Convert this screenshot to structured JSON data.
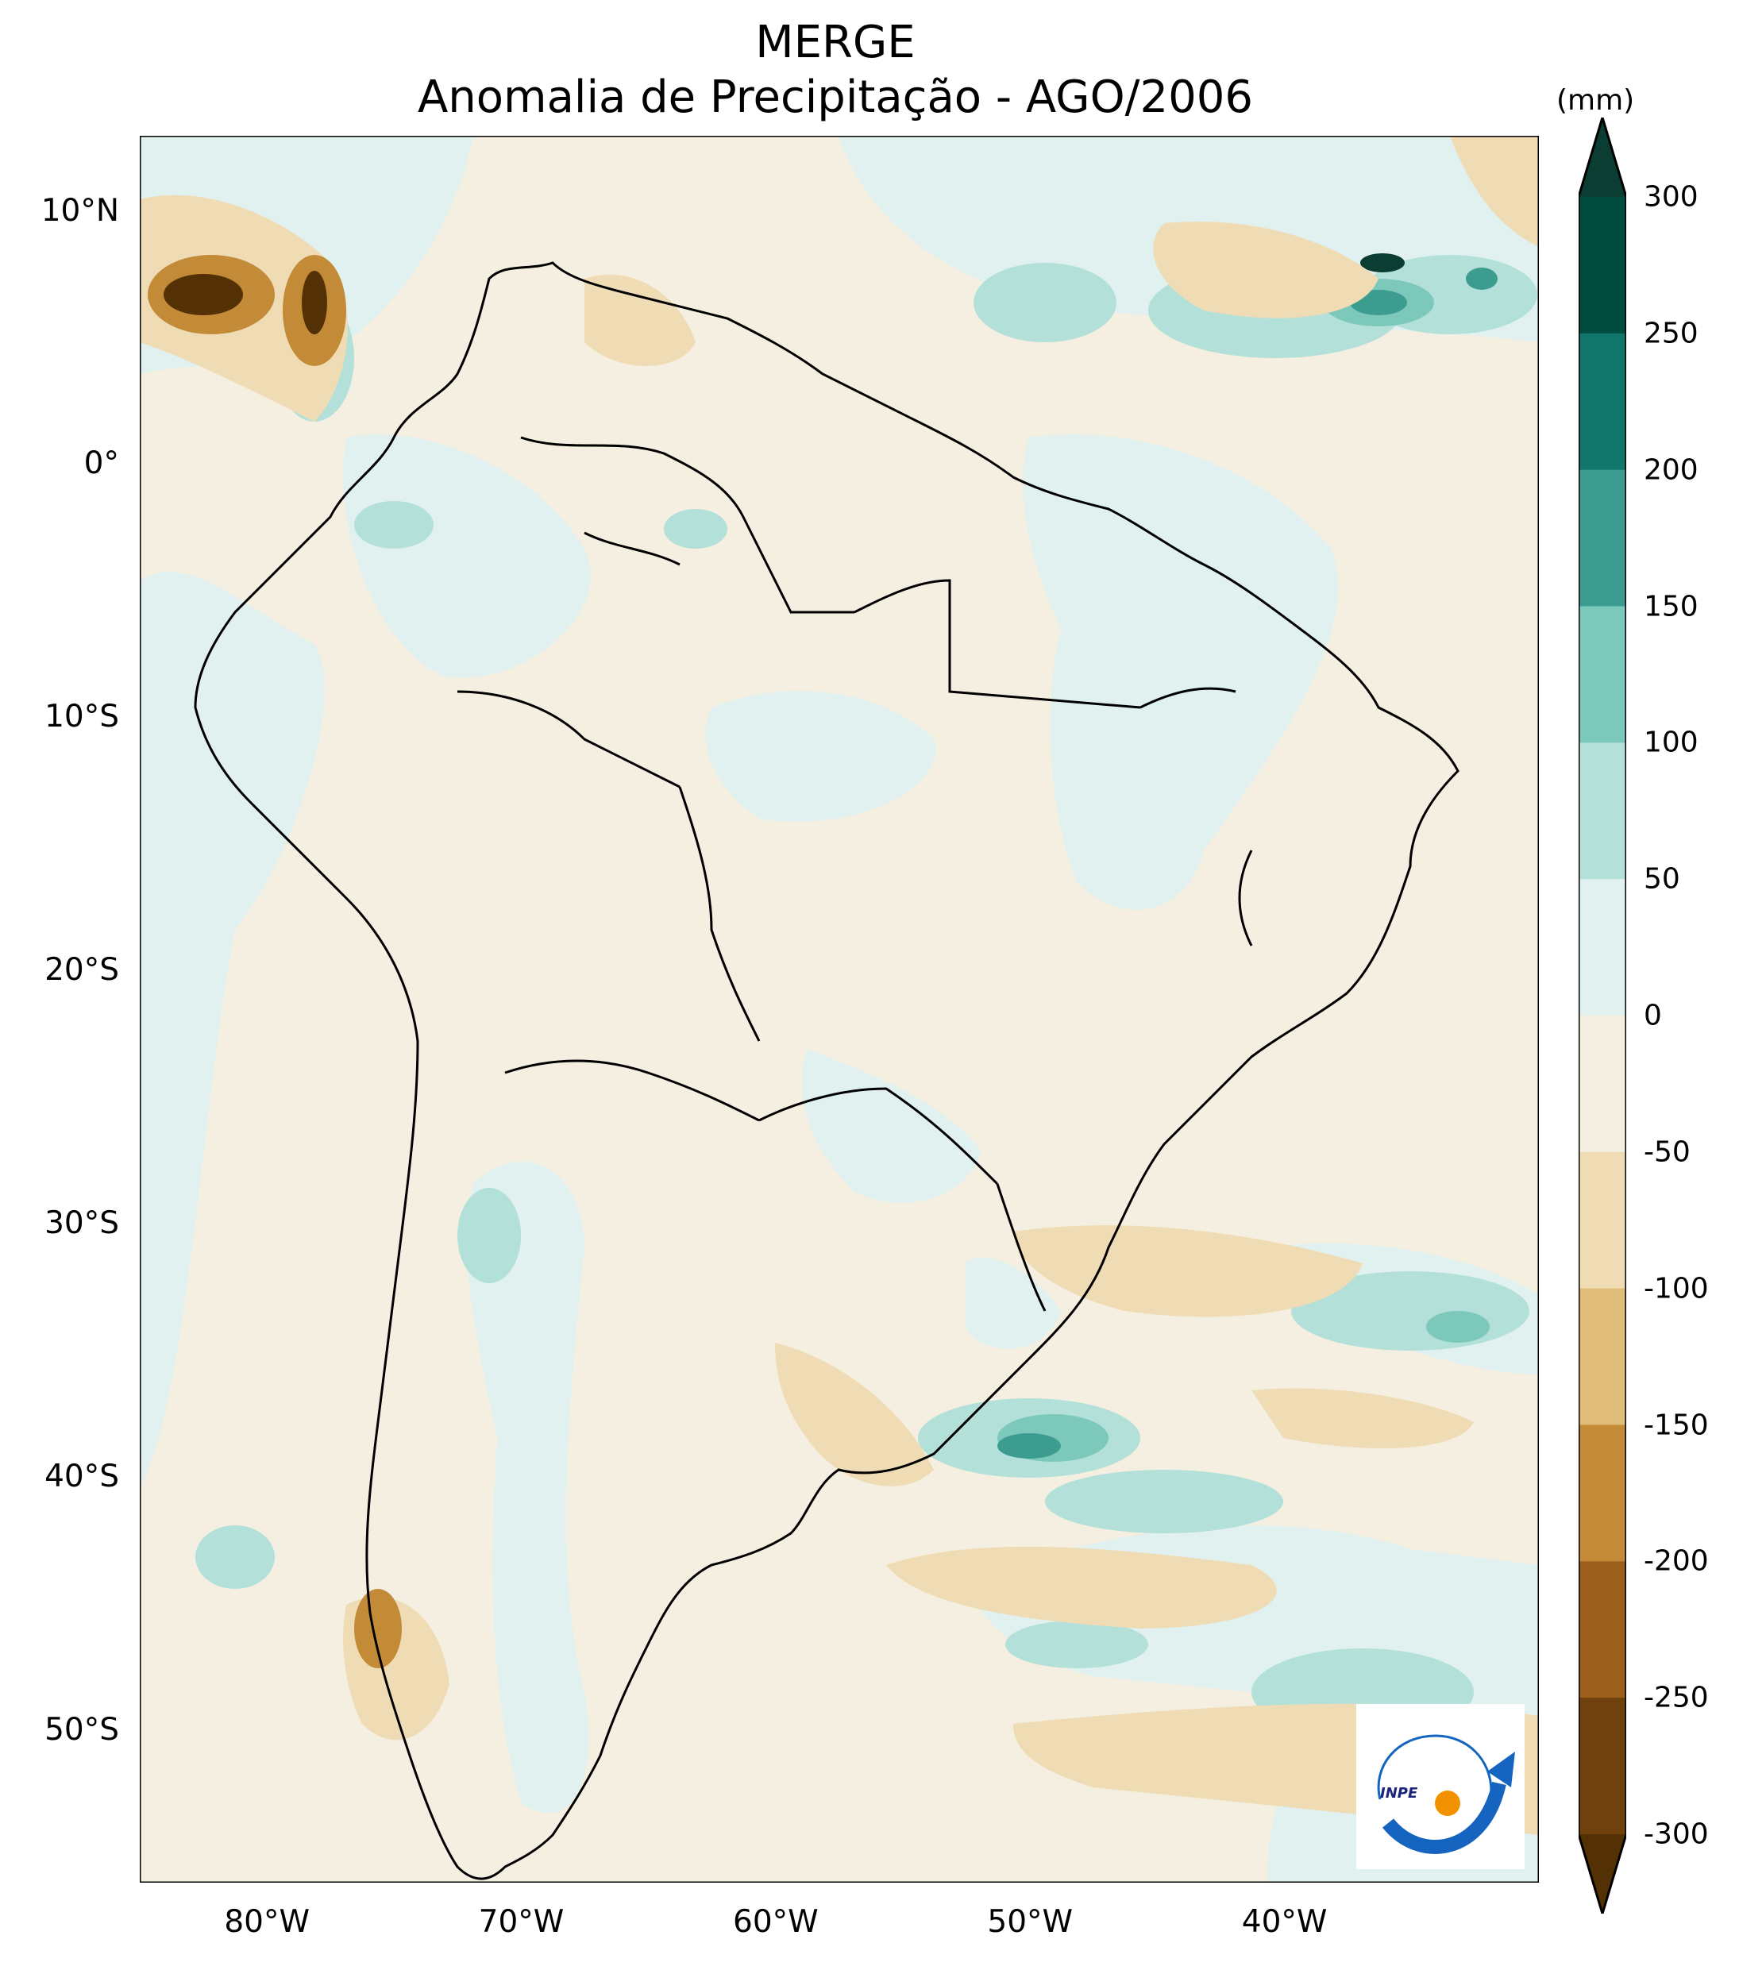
{
  "title": {
    "line1": "MERGE",
    "line2": "Anomalia de Precipitação - AGO/2006"
  },
  "map": {
    "lon_range": [
      -85,
      -30
    ],
    "lat_range": [
      -56,
      13
    ],
    "y_ticks": [
      {
        "lat": 10,
        "label": "10°N"
      },
      {
        "lat": 0,
        "label": "0°"
      },
      {
        "lat": -10,
        "label": "10°S"
      },
      {
        "lat": -20,
        "label": "20°S"
      },
      {
        "lat": -30,
        "label": "30°S"
      },
      {
        "lat": -40,
        "label": "40°S"
      },
      {
        "lat": -50,
        "label": "50°S"
      }
    ],
    "x_ticks": [
      {
        "lon": -80,
        "label": "80°W"
      },
      {
        "lon": -70,
        "label": "70°W"
      },
      {
        "lon": -60,
        "label": "60°W"
      },
      {
        "lon": -50,
        "label": "50°W"
      },
      {
        "lon": -40,
        "label": "40°W"
      }
    ]
  },
  "colorbar": {
    "unit": "(mm)",
    "levels": [
      -300,
      -250,
      -200,
      -150,
      -100,
      -50,
      0,
      50,
      100,
      150,
      200,
      250,
      300
    ],
    "labels": [
      "300",
      "250",
      "200",
      "150",
      "100",
      "50",
      "0",
      "-50",
      "-100",
      "-150",
      "-200",
      "-250",
      "-300"
    ],
    "colors_top_to_bottom": [
      "#0b3d33",
      "#004d40",
      "#11766b",
      "#3c9c8f",
      "#7cc8bb",
      "#b3e0d8",
      "#e0f1ef",
      "#f5efe2",
      "#efdcb5",
      "#dfbd78",
      "#c38a38",
      "#9b5e1b",
      "#6f410d",
      "#543005"
    ]
  },
  "logo": {
    "text": "INPE"
  }
}
